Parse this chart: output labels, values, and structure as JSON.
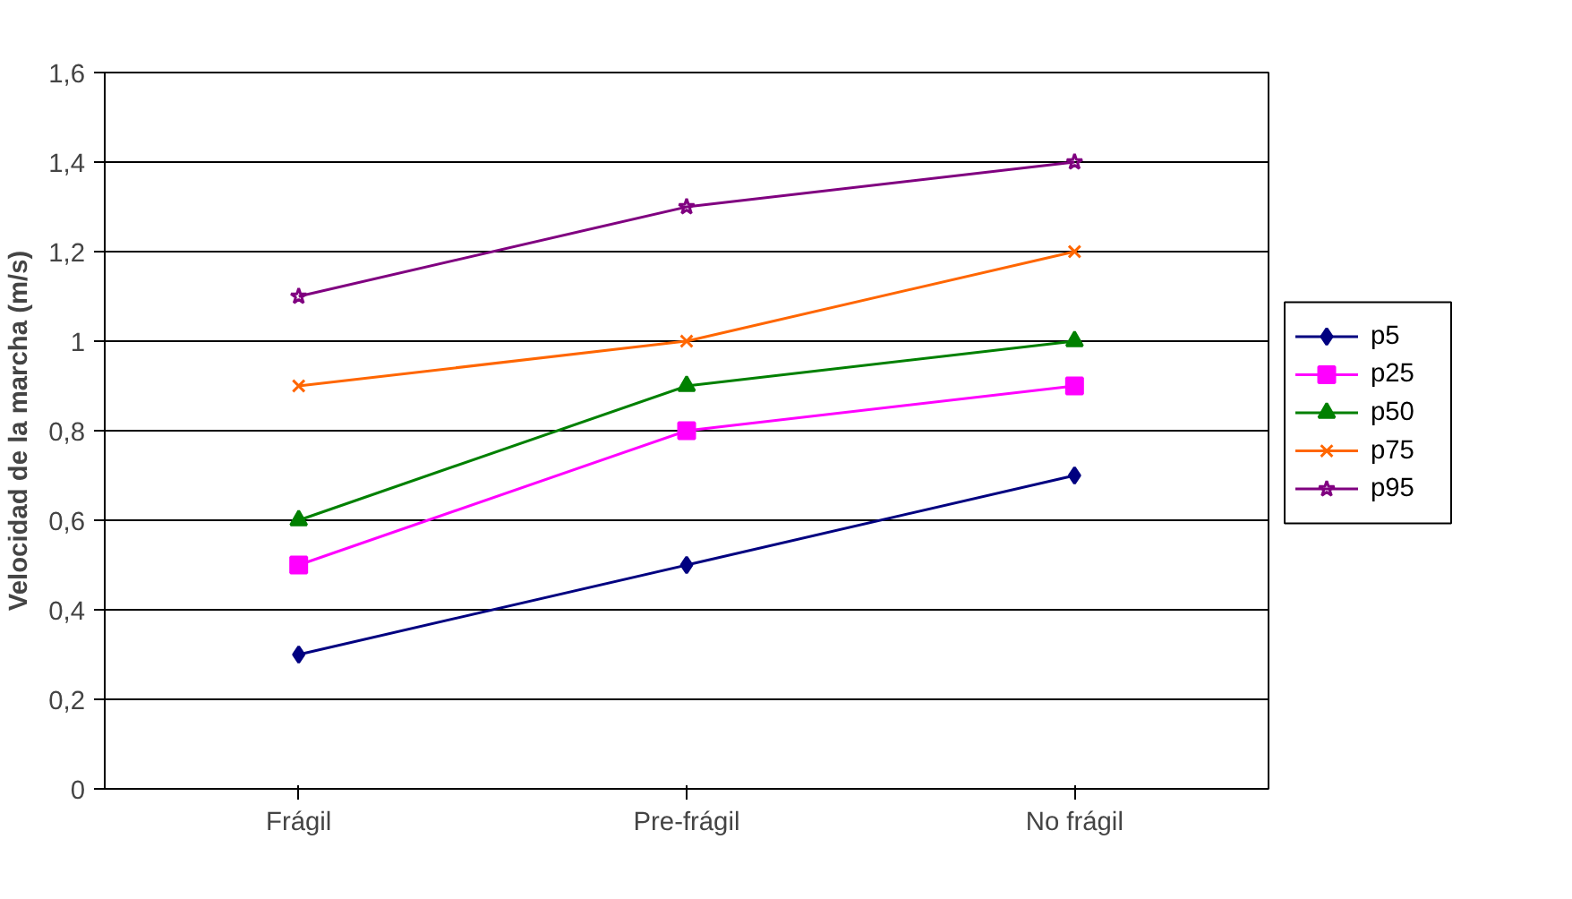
{
  "chart_data": {
    "type": "line",
    "ylabel": "Velocidad de la marcha (m/s)",
    "categories": [
      "Frágil",
      "Pre-frágil",
      "No frágil"
    ],
    "series": [
      {
        "name": "p5",
        "color": "#000080",
        "marker": "diamond",
        "values": [
          0.3,
          0.5,
          0.7
        ]
      },
      {
        "name": "p25",
        "color": "#ff00ff",
        "marker": "square",
        "values": [
          0.5,
          0.8,
          0.9
        ]
      },
      {
        "name": "p50",
        "color": "#008000",
        "marker": "triangle",
        "values": [
          0.6,
          0.9,
          1.0
        ]
      },
      {
        "name": "p75",
        "color": "#ff6600",
        "marker": "cross",
        "values": [
          0.9,
          1.0,
          1.2
        ]
      },
      {
        "name": "p95",
        "color": "#800080",
        "marker": "star",
        "values": [
          1.1,
          1.3,
          1.4
        ]
      }
    ],
    "ylim": [
      0,
      1.6
    ],
    "yticks": [
      0,
      {
        "value": 0.2,
        "label": "0,2"
      },
      {
        "value": 0.4,
        "label": "0,4"
      },
      {
        "value": 0.6,
        "label": "0,6"
      },
      {
        "value": 0.8,
        "label": "0,8"
      },
      1,
      {
        "value": 1.2,
        "label": "1,2"
      },
      {
        "value": 1.4,
        "label": "1,4"
      },
      {
        "value": 1.6,
        "label": "1,6"
      }
    ],
    "grid": "y",
    "legend": "right",
    "line_style": "solid"
  }
}
